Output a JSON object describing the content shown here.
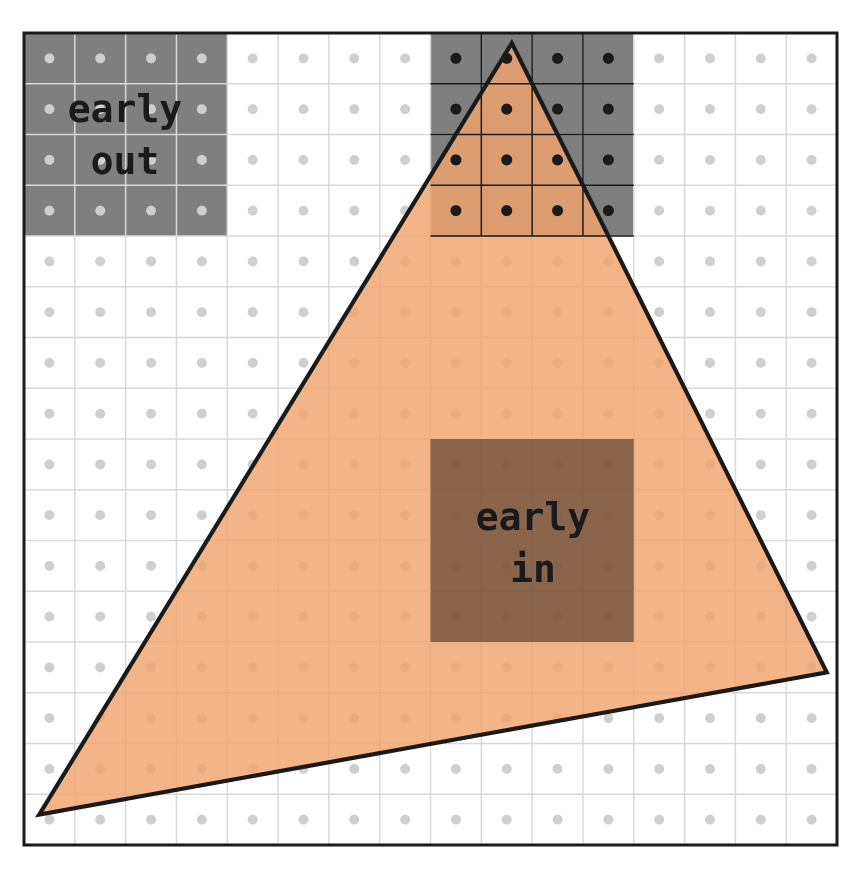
{
  "labels": {
    "early_out_line1": "early",
    "early_out_line2": "out",
    "early_in_line1": "early",
    "early_in_line2": "in"
  },
  "grid": {
    "columns": 16,
    "rows": 16,
    "block_size": 4
  },
  "triangle": {
    "vertices_in_cells": [
      [
        9.6,
        0.2
      ],
      [
        15.8,
        12.6
      ],
      [
        0.3,
        15.4
      ]
    ]
  },
  "blocks": {
    "early_out": {
      "col": 0,
      "row": 0
    },
    "partial": {
      "col": 8,
      "row": 0
    },
    "early_in": {
      "col": 8,
      "row": 8
    }
  },
  "colors": {
    "grid_line": "#d9d9d9",
    "sample_dot": "#cfcfcf",
    "sample_dot_active": "#1a1a1a",
    "triangle_fill": "#f0a46c",
    "triangle_stroke": "#1a1a1a",
    "block_gray": "#7f7f7f",
    "block_dark": "#4a3428",
    "frame": "#1a1a1a"
  }
}
